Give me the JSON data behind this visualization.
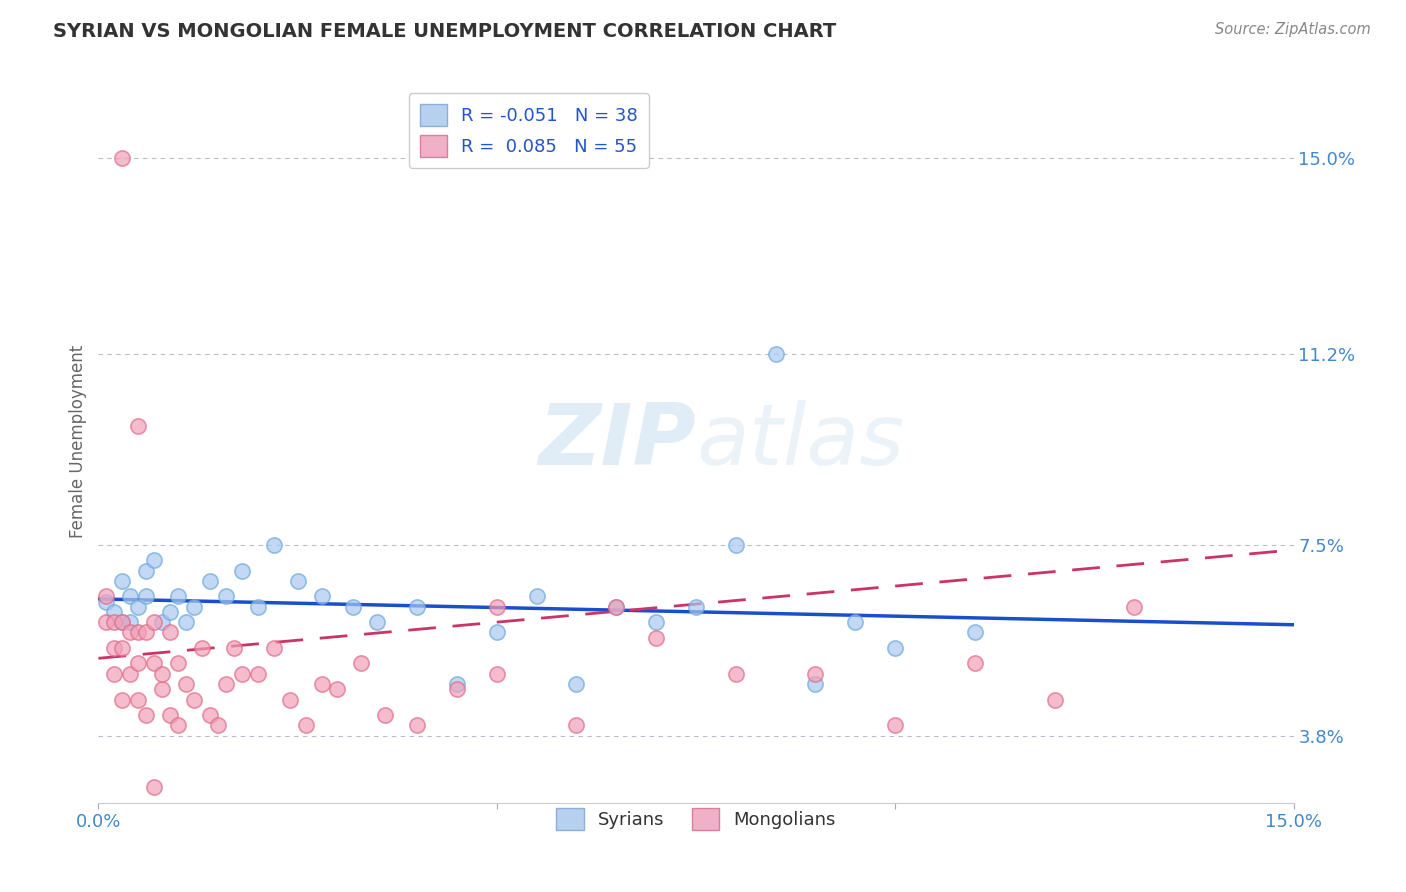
{
  "title": "SYRIAN VS MONGOLIAN FEMALE UNEMPLOYMENT CORRELATION CHART",
  "source": "Source: ZipAtlas.com",
  "ylabel": "Female Unemployment",
  "xlim": [
    0.0,
    0.15
  ],
  "ylim": [
    0.025,
    0.165
  ],
  "yticks": [
    0.038,
    0.075,
    0.112,
    0.15
  ],
  "ytick_labels": [
    "3.8%",
    "7.5%",
    "11.2%",
    "15.0%"
  ],
  "xtick_vals": [
    0.0,
    0.05,
    0.1,
    0.15
  ],
  "xtick_labels": [
    "0.0%",
    "",
    "",
    "15.0%"
  ],
  "legend_label_blue": "R = -0.051   N = 38",
  "legend_label_pink": "R =  0.085   N = 55",
  "legend_sublabels": [
    "Syrians",
    "Mongolians"
  ],
  "blue_marker_color": "#a8c8f0",
  "pink_marker_color": "#f0a0b8",
  "blue_edge_color": "#6fa8dc",
  "pink_edge_color": "#e06c88",
  "trend_blue_color": "#1a4fcc",
  "trend_pink_color": "#cc3366",
  "watermark_color": "#d8e8f5",
  "grid_color": "#bbbbcc",
  "title_color": "#333333",
  "tick_label_color": "#4488cc",
  "source_color": "#888888",
  "axis_label_color": "#666666",
  "blue_trend_start": 0.0645,
  "blue_trend_end": 0.0595,
  "pink_trend_start": 0.053,
  "pink_trend_end": 0.074,
  "syrian_x": [
    0.001,
    0.002,
    0.003,
    0.003,
    0.004,
    0.004,
    0.005,
    0.006,
    0.006,
    0.007,
    0.008,
    0.009,
    0.01,
    0.011,
    0.012,
    0.014,
    0.016,
    0.018,
    0.02,
    0.022,
    0.025,
    0.028,
    0.032,
    0.035,
    0.04,
    0.045,
    0.05,
    0.055,
    0.06,
    0.065,
    0.07,
    0.075,
    0.08,
    0.09,
    0.095,
    0.1,
    0.11,
    0.085
  ],
  "syrian_y": [
    0.064,
    0.062,
    0.068,
    0.06,
    0.065,
    0.06,
    0.063,
    0.07,
    0.065,
    0.072,
    0.06,
    0.062,
    0.065,
    0.06,
    0.063,
    0.068,
    0.065,
    0.07,
    0.063,
    0.075,
    0.068,
    0.065,
    0.063,
    0.06,
    0.063,
    0.048,
    0.058,
    0.065,
    0.048,
    0.063,
    0.06,
    0.063,
    0.075,
    0.048,
    0.06,
    0.055,
    0.058,
    0.112
  ],
  "mongolian_x": [
    0.001,
    0.001,
    0.002,
    0.002,
    0.002,
    0.003,
    0.003,
    0.003,
    0.004,
    0.004,
    0.005,
    0.005,
    0.005,
    0.006,
    0.006,
    0.007,
    0.007,
    0.008,
    0.008,
    0.009,
    0.009,
    0.01,
    0.01,
    0.011,
    0.012,
    0.013,
    0.014,
    0.015,
    0.016,
    0.017,
    0.018,
    0.02,
    0.022,
    0.024,
    0.026,
    0.028,
    0.03,
    0.033,
    0.036,
    0.04,
    0.045,
    0.05,
    0.06,
    0.065,
    0.07,
    0.08,
    0.09,
    0.1,
    0.11,
    0.12,
    0.13,
    0.003,
    0.005,
    0.007,
    0.05
  ],
  "mongolian_y": [
    0.06,
    0.065,
    0.05,
    0.055,
    0.06,
    0.045,
    0.055,
    0.06,
    0.05,
    0.058,
    0.045,
    0.052,
    0.058,
    0.042,
    0.058,
    0.052,
    0.06,
    0.047,
    0.05,
    0.042,
    0.058,
    0.04,
    0.052,
    0.048,
    0.045,
    0.055,
    0.042,
    0.04,
    0.048,
    0.055,
    0.05,
    0.05,
    0.055,
    0.045,
    0.04,
    0.048,
    0.047,
    0.052,
    0.042,
    0.04,
    0.047,
    0.05,
    0.04,
    0.063,
    0.057,
    0.05,
    0.05,
    0.04,
    0.052,
    0.045,
    0.063,
    0.15,
    0.098,
    0.028,
    0.063
  ]
}
